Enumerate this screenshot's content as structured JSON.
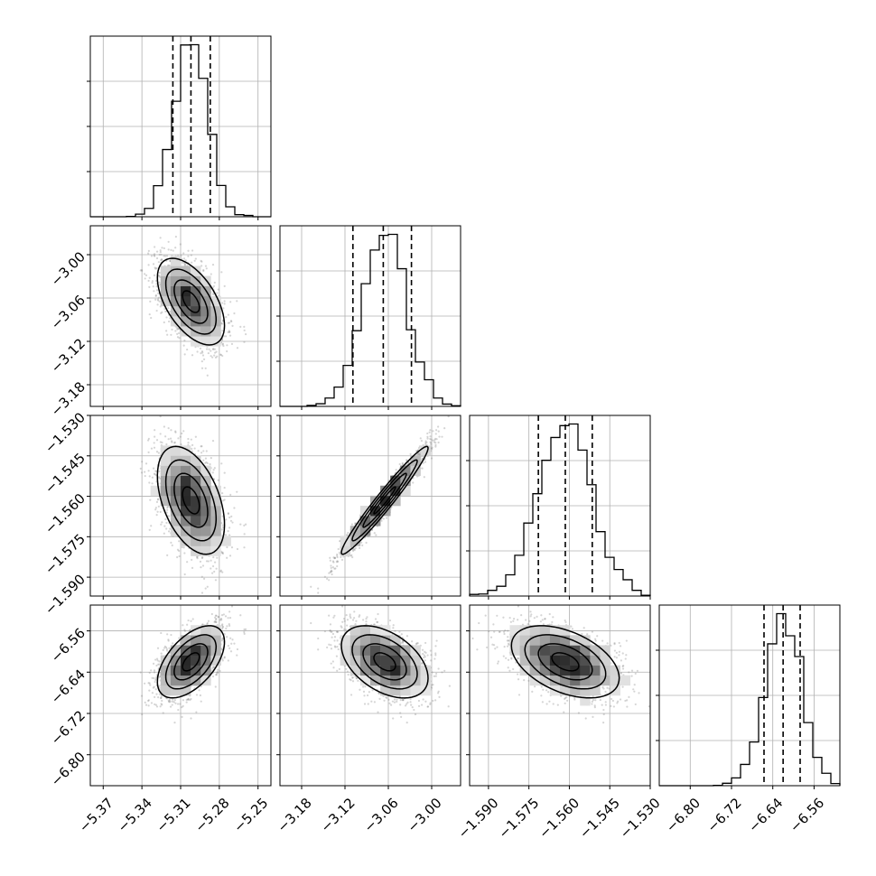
{
  "chart_data": {
    "type": "corner",
    "n_params": 4,
    "grid": true,
    "quantiles": [
      0.16,
      0.5,
      0.84
    ],
    "parameters": [
      {
        "mean": -5.302,
        "sd": 0.013,
        "range": [
          -5.38,
          -5.24
        ],
        "ticks": [
          -5.37,
          -5.34,
          -5.31,
          -5.28,
          -5.25
        ],
        "tick_labels": [
          "−5.37",
          "−5.34",
          "−5.31",
          "−5.28",
          "−5.25"
        ]
      },
      {
        "mean": -3.065,
        "sd": 0.03,
        "range": [
          -3.21,
          -2.96
        ],
        "ticks": [
          -3.18,
          -3.12,
          -3.06,
          -3.0
        ],
        "tick_labels": [
          "−3.18",
          "−3.12",
          "−3.06",
          "−3.00"
        ]
      },
      {
        "mean": -1.5615,
        "sd": 0.01,
        "range": [
          -1.597,
          -1.53
        ],
        "ticks": [
          -1.59,
          -1.575,
          -1.56,
          -1.545,
          -1.53
        ],
        "tick_labels": [
          "−1.590",
          "−1.575",
          "−1.560",
          "−1.545",
          "−1.530"
        ]
      },
      {
        "mean": -6.62,
        "sd": 0.035,
        "range": [
          -6.86,
          -6.51
        ],
        "ticks": [
          -6.8,
          -6.72,
          -6.64,
          -6.56
        ],
        "tick_labels": [
          "−6.80",
          "−6.72",
          "−6.64",
          "−6.56"
        ]
      }
    ],
    "diagonal_quantile_lines": [
      [
        -5.316,
        -5.302,
        -5.287
      ],
      [
        -3.109,
        -3.067,
        -3.028
      ],
      [
        -1.5715,
        -1.5615,
        -1.5515
      ],
      [
        -6.657,
        -6.62,
        -6.587
      ]
    ],
    "correlations": [
      {
        "pair": [
          1,
          0
        ],
        "rho": -0.55
      },
      {
        "pair": [
          2,
          0
        ],
        "rho": -0.45
      },
      {
        "pair": [
          2,
          1
        ],
        "rho": 0.97
      },
      {
        "pair": [
          3,
          0
        ],
        "rho": 0.55
      },
      {
        "pair": [
          3,
          1
        ],
        "rho": -0.45
      },
      {
        "pair": [
          3,
          2
        ],
        "rho": -0.45
      }
    ]
  }
}
